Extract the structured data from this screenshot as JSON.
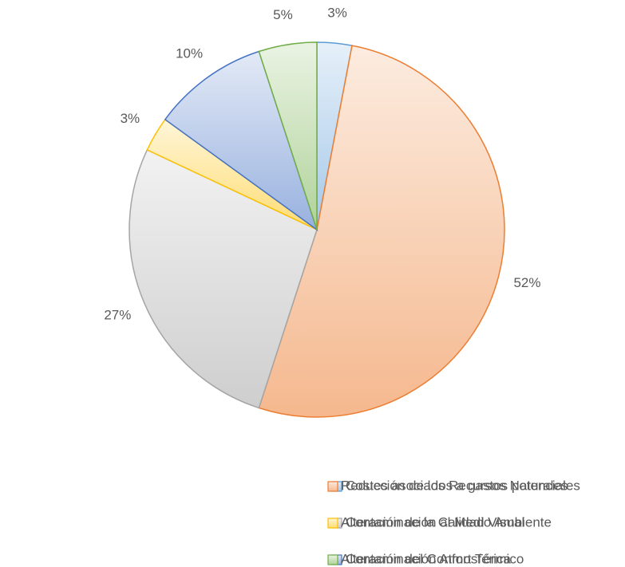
{
  "chart_data": {
    "type": "pie",
    "categories": [
      "Costes asociados a gastos potenciales",
      "Reducción de los Recursos Naturales",
      "Contaminación al Medio Ambiente",
      "Alteración de la Calidad Visual",
      "Contaminación Atmosférica",
      "Alteración del Confort Térmico"
    ],
    "values": [
      3,
      52,
      27,
      3,
      10,
      5
    ],
    "value_labels": [
      "3%",
      "52%",
      "27%",
      "3%",
      "10%",
      "5%"
    ],
    "colors": [
      "#5b9bd5",
      "#ed7d31",
      "#a5a5a5",
      "#ffc000",
      "#4472c4",
      "#70ad47"
    ],
    "legend": "bottom"
  }
}
